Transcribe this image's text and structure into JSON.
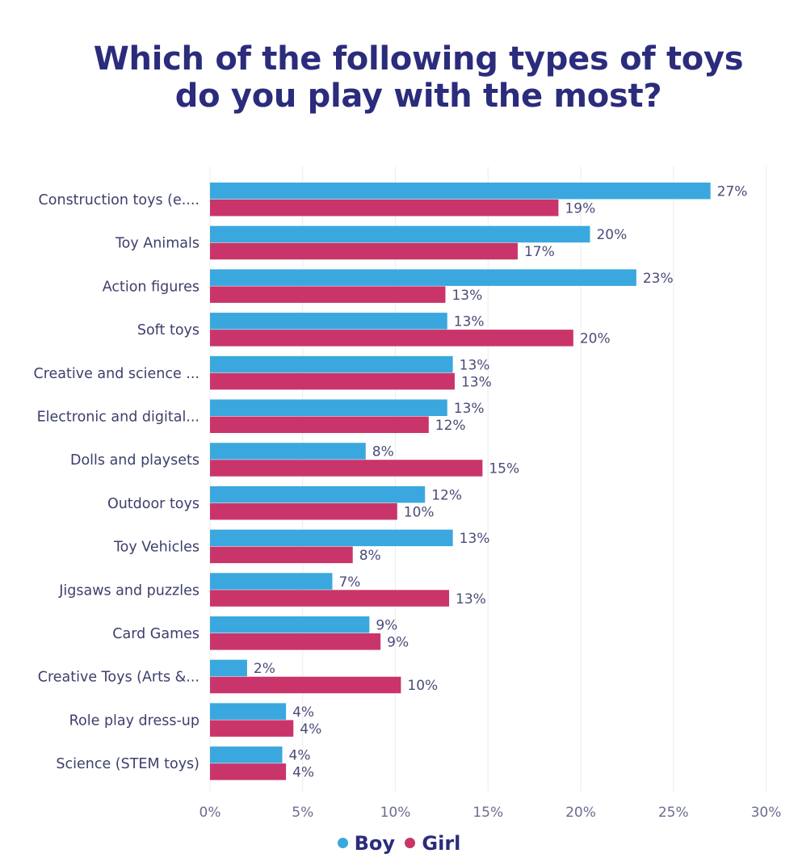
{
  "chart_data": {
    "type": "bar",
    "orientation": "horizontal",
    "title_lines": [
      "Which of the following types of toys",
      "do you play with the most?"
    ],
    "categories": [
      "Construction toys (e....",
      "Toy Animals",
      "Action figures",
      "Soft toys",
      "Creative and science ...",
      "Electronic and digital...",
      "Dolls and playsets",
      "Outdoor toys",
      "Toy Vehicles",
      "Jigsaws and puzzles",
      "Card Games",
      "Creative Toys (Arts &...",
      "Role play dress-up",
      "Science (STEM toys)"
    ],
    "series": [
      {
        "name": "Boy",
        "color": "#3aa8de",
        "values": [
          27,
          20.5,
          23,
          12.8,
          13.1,
          12.8,
          8.4,
          11.6,
          13.1,
          6.6,
          8.6,
          2.0,
          4.1,
          3.9
        ],
        "labels": [
          "27%",
          "20%",
          "23%",
          "13%",
          "13%",
          "13%",
          "8%",
          "12%",
          "13%",
          "7%",
          "9%",
          "2%",
          "4%",
          "4%"
        ]
      },
      {
        "name": "Girl",
        "color": "#c9356a",
        "values": [
          18.8,
          16.6,
          12.7,
          19.6,
          13.2,
          11.8,
          14.7,
          10.1,
          7.7,
          12.9,
          9.2,
          10.3,
          4.5,
          4.1
        ],
        "labels": [
          "19%",
          "17%",
          "13%",
          "20%",
          "13%",
          "12%",
          "15%",
          "10%",
          "8%",
          "13%",
          "9%",
          "10%",
          "4%",
          "4%"
        ]
      }
    ],
    "xlim": [
      0,
      30
    ],
    "xticks": [
      0,
      5,
      10,
      15,
      20,
      25,
      30
    ],
    "xtick_labels": [
      "0%",
      "5%",
      "10%",
      "15%",
      "20%",
      "25%",
      "30%"
    ],
    "grid": true,
    "legend": "bottom-center"
  }
}
